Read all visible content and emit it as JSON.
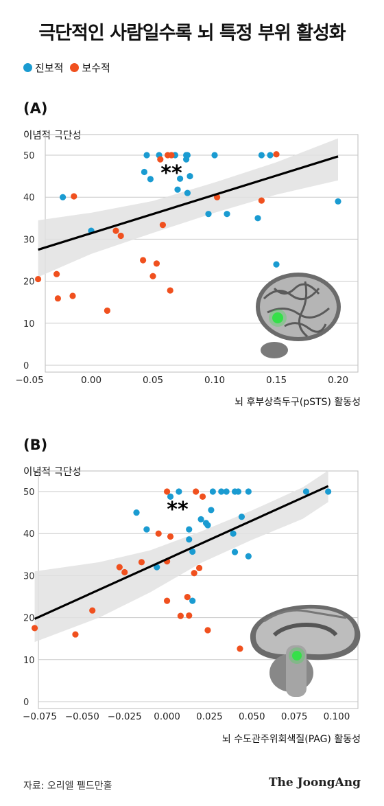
{
  "title": "극단적인 사람일수록 뇌 특정 부위 활성화",
  "legend": [
    {
      "label": "진보적",
      "color": "#1a9bd1"
    },
    {
      "label": "보수적",
      "color": "#f0501e"
    }
  ],
  "source": "자료: 오리엘 펠드만홀",
  "brand": "The JoongAng",
  "chart_data": [
    {
      "type": "scatter",
      "panel": "(A)",
      "ylabel": "이념적 극단성",
      "xlabel": "뇌 후부상측두구(pSTS) 활동성",
      "significance": "**",
      "brain_view": "lateral-brain-icon",
      "xlim": [
        -0.05,
        0.21
      ],
      "ylim": [
        0,
        52
      ],
      "xticks": [
        "−0.05",
        "0.00",
        "0.05",
        "0.10",
        "0.15",
        "0.20"
      ],
      "xtick_values": [
        -0.05,
        0,
        0.05,
        0.1,
        0.15,
        0.2
      ],
      "yticks": [
        "0",
        "10",
        "20",
        "30",
        "40",
        "50"
      ],
      "ytick_values": [
        0,
        10,
        20,
        30,
        40,
        50
      ],
      "grid": "horizontal",
      "regression": {
        "x": [
          -0.043,
          0.2
        ],
        "y": [
          27.5,
          49.7
        ]
      },
      "ci_band": {
        "x": [
          -0.043,
          0.0,
          0.05,
          0.1,
          0.15,
          0.2
        ],
        "upper": [
          34.5,
          36.3,
          39.1,
          43.5,
          48.3,
          54.0
        ],
        "lower": [
          21.0,
          26.5,
          31.5,
          36.3,
          40.6,
          44.0
        ]
      },
      "series": [
        {
          "name": "진보적",
          "color": "#1a9bd1",
          "x": [
            -0.023,
            0.0,
            0.043,
            0.045,
            0.048,
            0.055,
            0.068,
            0.07,
            0.072,
            0.077,
            0.077,
            0.078,
            0.078,
            0.08,
            0.095,
            0.1,
            0.11,
            0.135,
            0.138,
            0.145,
            0.15,
            0.2
          ],
          "y": [
            40,
            32,
            46,
            50,
            44.3,
            50,
            50,
            41.8,
            44.4,
            50,
            49,
            41,
            50,
            45,
            36,
            50,
            36,
            35,
            50,
            50,
            24,
            39
          ]
        },
        {
          "name": "보수적",
          "color": "#f0501e",
          "x": [
            -0.043,
            -0.028,
            -0.027,
            -0.015,
            -0.014,
            0.013,
            0.02,
            0.024,
            0.042,
            0.05,
            0.053,
            0.056,
            0.058,
            0.062,
            0.064,
            0.065,
            0.102,
            0.138,
            0.15
          ],
          "y": [
            20.5,
            21.7,
            15.9,
            16.5,
            40.2,
            13,
            32,
            30.8,
            25,
            21.2,
            24.2,
            49,
            33.4,
            50,
            17.8,
            50,
            40,
            39.2,
            50.2
          ]
        }
      ]
    },
    {
      "type": "scatter",
      "panel": "(B)",
      "ylabel": "이념적 극단성",
      "xlabel": "뇌 수도관주위회색질(PAG) 활동성",
      "significance": "**",
      "brain_view": "medial-brain-icon",
      "xlim": [
        -0.08,
        0.113
      ],
      "ylim": [
        0,
        52
      ],
      "xticks": [
        "−0.075",
        "−0.050",
        "−0.025",
        "0.000",
        "0.025",
        "0.050",
        "0.075",
        "0.100"
      ],
      "xtick_values": [
        -0.075,
        -0.05,
        -0.025,
        0,
        0.025,
        0.05,
        0.075,
        0.1
      ],
      "yticks": [
        "0",
        "10",
        "20",
        "30",
        "40",
        "50"
      ],
      "ytick_values": [
        0,
        10,
        20,
        30,
        40,
        50
      ],
      "grid": "horizontal",
      "regression": {
        "x": [
          -0.078,
          0.095
        ],
        "y": [
          19.7,
          51.3
        ]
      },
      "ci_band": {
        "x": [
          -0.078,
          -0.04,
          -0.01,
          0.02,
          0.05,
          0.08,
          0.095
        ],
        "upper": [
          31.0,
          33.2,
          36.0,
          40.5,
          45.5,
          51.0,
          55.0
        ],
        "lower": [
          14.2,
          20.0,
          26.0,
          33.0,
          38.5,
          43.5,
          47.5
        ]
      },
      "series": [
        {
          "name": "진보적",
          "color": "#1a9bd1",
          "x": [
            -0.018,
            -0.012,
            -0.006,
            0.002,
            0.007,
            0.013,
            0.013,
            0.015,
            0.015,
            0.02,
            0.023,
            0.024,
            0.026,
            0.027,
            0.032,
            0.035,
            0.039,
            0.04,
            0.04,
            0.042,
            0.044,
            0.048,
            0.048,
            0.082,
            0.095
          ],
          "y": [
            45,
            41,
            32,
            48.8,
            50,
            41,
            38.6,
            35.7,
            24,
            43.4,
            42.5,
            42,
            45.6,
            50,
            50,
            50,
            40,
            50,
            35.6,
            50,
            44,
            34.6,
            50,
            50,
            50
          ]
        },
        {
          "name": "보수적",
          "color": "#f0501e",
          "x": [
            -0.078,
            -0.054,
            -0.044,
            -0.028,
            -0.025,
            -0.015,
            -0.005,
            0.0,
            0.0,
            0.0,
            0.002,
            0.008,
            0.012,
            0.013,
            0.016,
            0.017,
            0.019,
            0.021,
            0.024,
            0.043
          ],
          "y": [
            17.5,
            16,
            21.7,
            32,
            30.8,
            33.2,
            40,
            24,
            33.4,
            50,
            39.3,
            20.4,
            24.9,
            20.5,
            30.6,
            50,
            31.8,
            48.8,
            17,
            12.6
          ]
        }
      ]
    }
  ]
}
